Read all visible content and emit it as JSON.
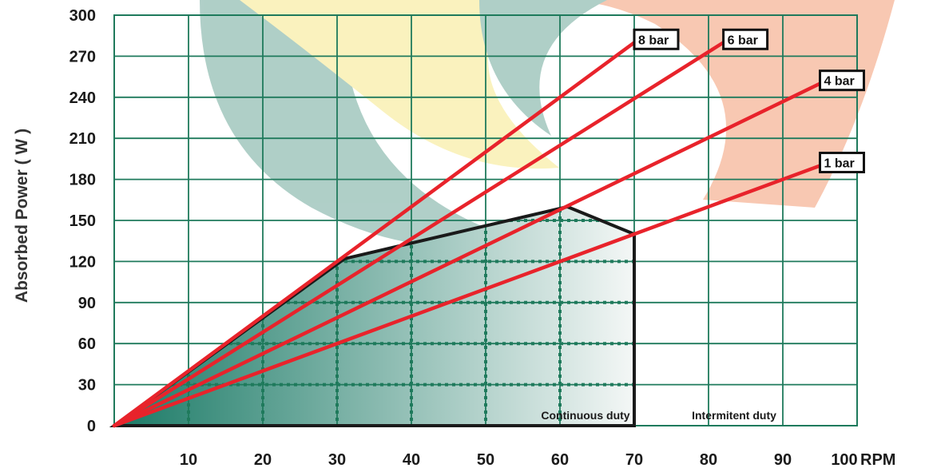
{
  "chart_data": {
    "type": "line",
    "ylabel": "Absorbed Power ( W )",
    "x_unit": "RPM",
    "xlim": [
      0,
      100
    ],
    "ylim": [
      0,
      300
    ],
    "x_ticks": [
      "10",
      "20",
      "30",
      "40",
      "50",
      "60",
      "70",
      "80",
      "90",
      "100"
    ],
    "y_ticks": [
      "0",
      "30",
      "60",
      "90",
      "120",
      "150",
      "180",
      "210",
      "240",
      "270",
      "300"
    ],
    "grid": true,
    "series": [
      {
        "name": "1 bar",
        "x": [
          0,
          95
        ],
        "y": [
          0,
          190
        ]
      },
      {
        "name": "4 bar",
        "x": [
          0,
          95
        ],
        "y": [
          0,
          250
        ]
      },
      {
        "name": "6 bar",
        "x": [
          0,
          82
        ],
        "y": [
          0,
          280
        ]
      },
      {
        "name": "8 bar",
        "x": [
          0,
          70
        ],
        "y": [
          0,
          280
        ]
      }
    ],
    "continuous_duty_region": {
      "label": "Continuous duty",
      "x": [
        0,
        31,
        61,
        70,
        70,
        0
      ],
      "y": [
        0,
        122,
        160,
        140,
        0,
        0
      ]
    },
    "annotations": [
      {
        "text": "Continuous duty",
        "x": 60,
        "y": 8
      },
      {
        "text": "Intermitent duty",
        "x": 80,
        "y": 8
      }
    ],
    "colors": {
      "grid": "#1f7a5c",
      "series_line": "#e8232b",
      "region_outline": "#1a1a1a",
      "region_fill_start": "#1a7a66",
      "region_fill_end": "#f4f7f6",
      "dotted_grid": "#1f7a5c"
    }
  }
}
